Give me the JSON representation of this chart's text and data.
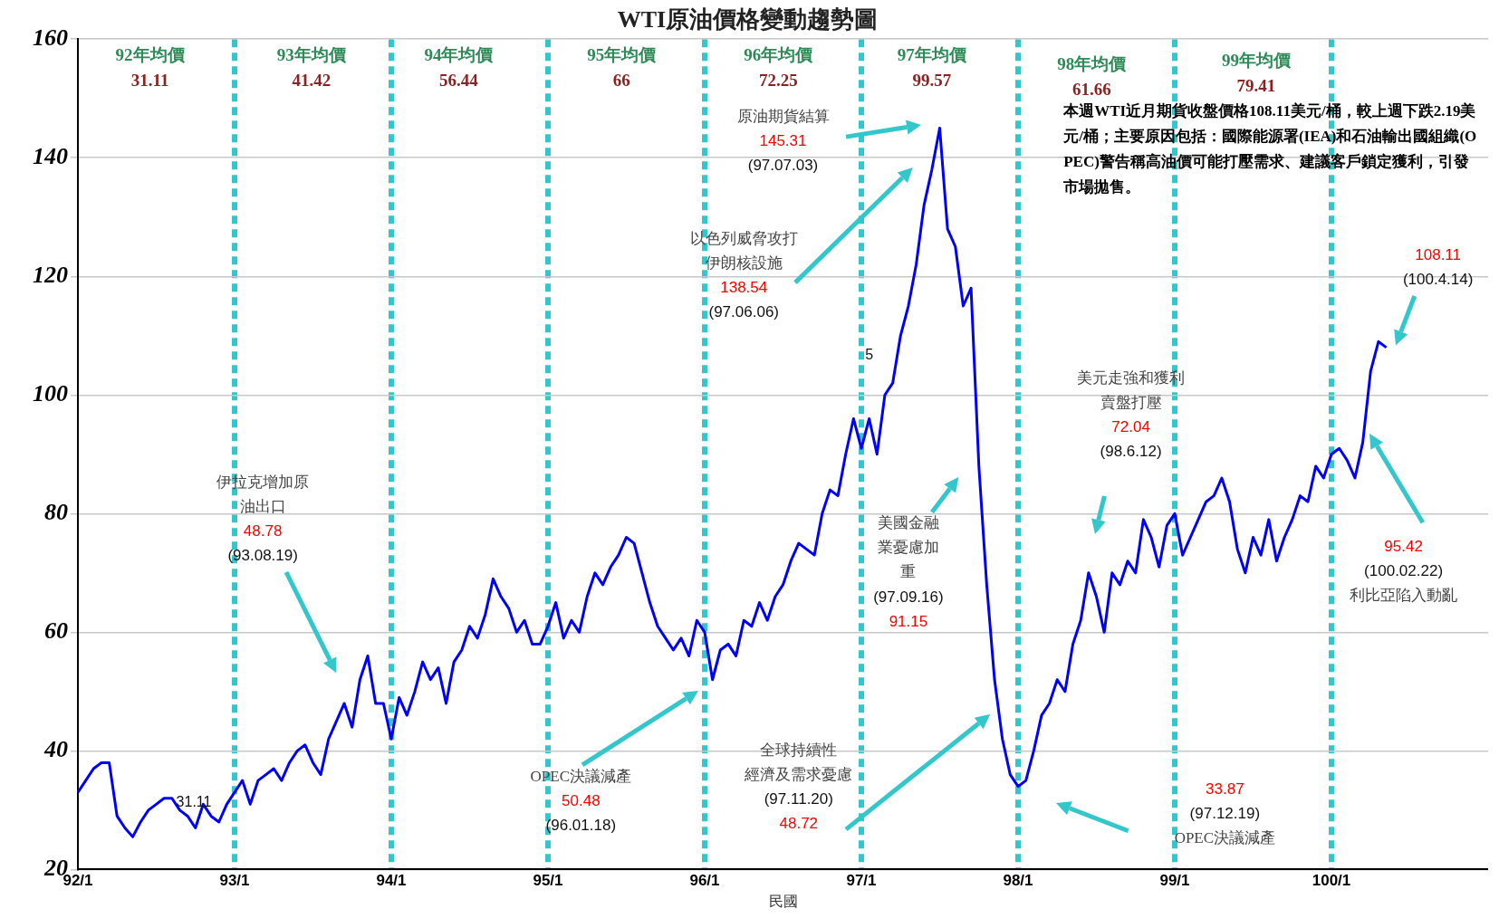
{
  "chart_data": {
    "type": "line",
    "title": "WTI原油價格變動趨勢圖",
    "xlabel": "民國",
    "categories": [
      "92/1",
      null,
      null,
      null,
      null,
      null,
      null,
      null,
      null,
      null,
      null,
      null,
      null,
      null,
      null,
      null,
      null,
      null,
      null,
      null,
      "93/1",
      null,
      null,
      null,
      null,
      null,
      null,
      null,
      null,
      null,
      null,
      null,
      null,
      null,
      null,
      null,
      null,
      null,
      null,
      null,
      "94/1",
      null,
      null,
      null,
      null,
      null,
      null,
      null,
      null,
      null,
      null,
      null,
      null,
      null,
      null,
      null,
      null,
      null,
      null,
      null,
      "95/1",
      null,
      null,
      null,
      null,
      null,
      null,
      null,
      null,
      null,
      null,
      null,
      null,
      null,
      null,
      null,
      null,
      null,
      null,
      null,
      "96/1",
      null,
      null,
      null,
      null,
      null,
      null,
      null,
      null,
      null,
      null,
      null,
      null,
      null,
      null,
      null,
      null,
      null,
      null,
      null,
      "97/1",
      null,
      null,
      null,
      null,
      null,
      null,
      null,
      null,
      null,
      null,
      null,
      null,
      null,
      null,
      null,
      null,
      null,
      null,
      null,
      "98/1",
      null,
      null,
      null,
      null,
      null,
      null,
      null,
      null,
      null,
      null,
      null,
      null,
      null,
      null,
      null,
      null,
      null,
      null,
      null,
      "99/1",
      null,
      null,
      null,
      null,
      null,
      null,
      null,
      null,
      null,
      null,
      null,
      null,
      null,
      null,
      null,
      null,
      null,
      null,
      null,
      "100/1",
      null,
      null,
      null,
      null,
      null,
      null,
      null,
      null,
      null,
      null,
      null,
      null,
      null,
      null,
      null,
      null,
      null,
      null,
      null,
      null
    ],
    "series": [
      {
        "color": "#0000ff",
        "values": [
          33,
          35,
          37,
          38,
          38,
          29,
          27,
          25.5,
          28,
          30,
          31,
          32,
          32,
          30,
          29,
          27,
          31,
          29,
          28,
          31,
          33,
          35,
          31,
          35,
          36,
          37,
          35,
          38,
          40,
          41,
          38,
          36,
          42,
          45,
          48,
          44,
          52,
          56,
          48,
          48,
          42,
          49,
          46,
          50,
          55,
          52,
          54,
          48,
          55,
          57,
          61,
          59,
          63,
          69,
          66,
          64,
          60,
          62,
          58,
          58,
          61,
          65,
          59,
          62,
          60,
          66,
          70,
          68,
          71,
          73,
          76,
          75,
          70,
          65,
          61,
          59,
          57,
          59,
          56,
          62,
          60,
          52,
          57,
          58,
          56,
          62,
          61,
          65,
          62,
          66,
          68,
          72,
          75,
          74,
          73,
          80,
          84,
          83,
          90,
          96,
          91,
          96,
          90,
          100,
          102,
          110,
          115,
          122,
          132,
          138,
          145,
          128,
          125,
          115,
          118,
          88,
          68,
          52,
          42,
          36,
          34,
          35,
          40,
          46,
          48,
          52,
          50,
          58,
          62,
          70,
          66,
          60,
          70,
          68,
          72,
          70,
          79,
          76,
          71,
          78,
          80,
          73,
          76,
          79,
          82,
          83,
          86,
          82,
          74,
          70,
          76,
          73,
          79,
          72,
          76,
          79,
          83,
          82,
          88,
          86,
          90,
          91,
          89,
          86,
          92,
          104,
          109,
          108,
          null,
          null,
          null,
          null,
          null,
          null,
          null,
          null,
          null,
          null,
          null,
          null,
          null
        ]
      }
    ],
    "ylim": [
      20,
      160
    ],
    "yticks": [
      20,
      40,
      60,
      80,
      100,
      120,
      140,
      160
    ],
    "grid": true,
    "annotations": [
      "92年均價\n31.11",
      "93年均價\n41.42",
      "94年均價\n56.44",
      "95年均價\n66",
      "96年均價\n72.25",
      "97年均價\n99.57",
      "98年均價\n61.66",
      "99年均價\n79.41",
      "伊拉克增加原油出口\n48.78\n(93.08.19)",
      "原油期貨結算\n145.31\n(97.07.03)",
      "以色列威脅攻打伊朗核設施\n138.54\n(97.06.06)",
      "美國金融業憂慮加重\n(97.09.16)\n91.15",
      "美元走強和獲利賣盤打壓\n72.04\n(98.6.12)",
      "108.11\n(100.4.14)",
      "95.42\n(100.02.22)\n利比亞陷入動亂",
      "OPEC決議減產\n50.48\n(96.01.18)",
      "全球持續性經濟及需求憂慮\n(97.11.20)\n48.72",
      "33.87\n(97.12.19)\nOPEC決議減產",
      "31.11",
      "5",
      "本週WTI近月期貨收盤價格108.11美元/桶，較上週下跌2.19美元/桶；主要原因包括：國際能源署(IEA)和石油輸出國組織(OPEC)警告稱高油價可能打壓需求、建議客戶鎖定獲利，引發市場拋售。"
    ]
  }
}
